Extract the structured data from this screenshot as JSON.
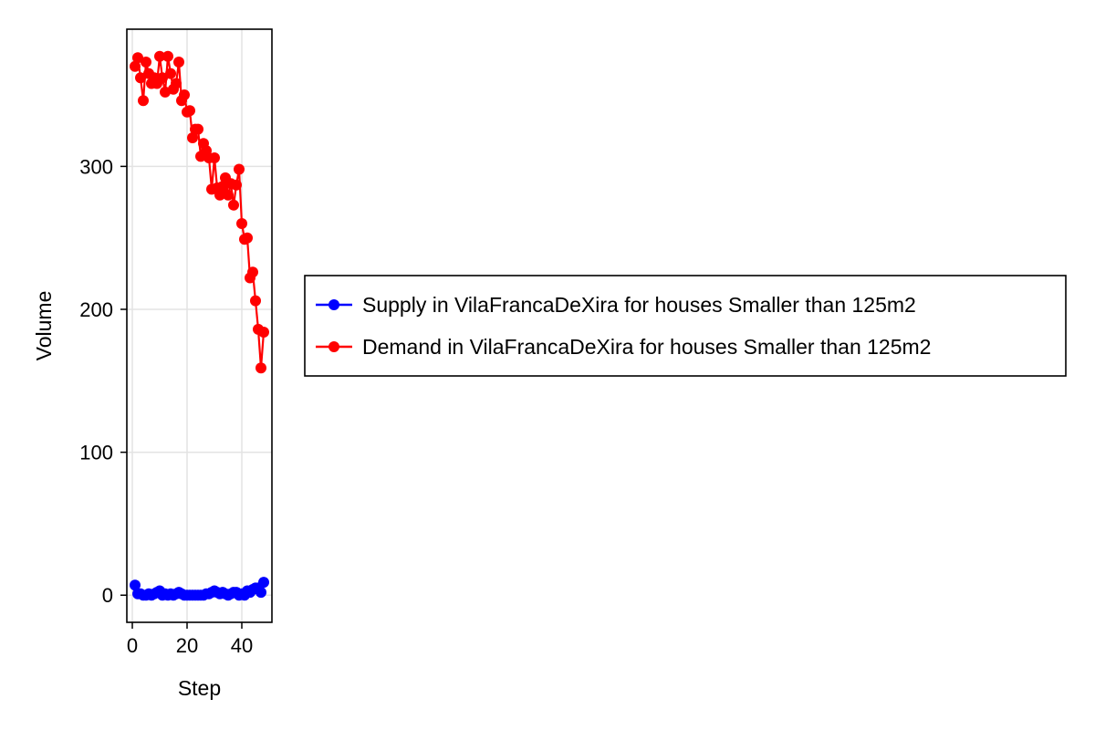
{
  "chart_data": {
    "type": "line",
    "xlabel": "Step",
    "ylabel": "Volume",
    "xlim": [
      -2,
      51
    ],
    "ylim": [
      -19,
      396
    ],
    "xticks": [
      0,
      20,
      40
    ],
    "yticks": [
      0,
      100,
      200,
      300
    ],
    "grid": true,
    "legend_position": "right",
    "series": [
      {
        "name": "Supply in VilaFrancaDeXira for houses Smaller than 125m2",
        "color": "#0000ff",
        "x": [
          1,
          2,
          3,
          4,
          5,
          6,
          7,
          8,
          9,
          10,
          11,
          12,
          13,
          14,
          15,
          16,
          17,
          18,
          19,
          20,
          21,
          22,
          23,
          24,
          25,
          26,
          27,
          28,
          29,
          30,
          31,
          32,
          33,
          34,
          35,
          36,
          37,
          38,
          39,
          40,
          41,
          42,
          43,
          44,
          45,
          46,
          47,
          48
        ],
        "y": [
          7,
          1,
          1,
          0,
          0,
          1,
          0,
          1,
          2,
          3,
          0,
          1,
          0,
          1,
          0,
          1,
          2,
          1,
          0,
          0,
          0,
          0,
          0,
          0,
          0,
          0,
          1,
          1,
          2,
          3,
          2,
          1,
          2,
          1,
          0,
          1,
          2,
          2,
          0,
          1,
          0,
          3,
          2,
          4,
          5,
          5,
          2,
          9
        ]
      },
      {
        "name": "Demand in VilaFrancaDeXira for houses Smaller than 125m2",
        "color": "#ff0000",
        "x": [
          1,
          2,
          3,
          4,
          5,
          6,
          7,
          8,
          9,
          10,
          11,
          12,
          13,
          14,
          15,
          16,
          17,
          18,
          19,
          20,
          21,
          22,
          23,
          24,
          25,
          26,
          27,
          28,
          29,
          30,
          31,
          32,
          33,
          34,
          35,
          36,
          37,
          38,
          39,
          40,
          41,
          42,
          43,
          44,
          45,
          46,
          47,
          48
        ],
        "y": [
          370,
          376,
          362,
          346,
          373,
          365,
          358,
          362,
          358,
          377,
          362,
          352,
          377,
          365,
          354,
          358,
          373,
          346,
          350,
          338,
          339,
          320,
          326,
          326,
          307,
          316,
          311,
          306,
          284,
          306,
          285,
          280,
          286,
          292,
          280,
          288,
          273,
          287,
          298,
          260,
          249,
          250,
          222,
          226,
          206,
          186,
          159,
          184
        ]
      }
    ]
  }
}
